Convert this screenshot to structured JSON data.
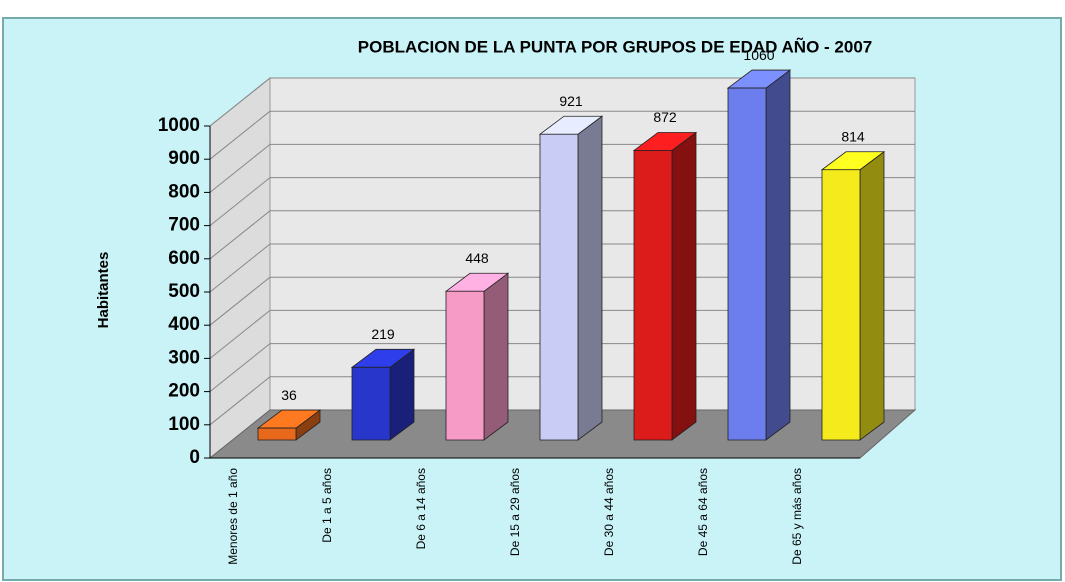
{
  "chart_data": {
    "type": "bar3d",
    "title": "POBLACION DE LA PUNTA POR GRUPOS DE EDAD AÑO - 2007",
    "ylabel": "Habitantes",
    "categories": [
      "Menores de 1 año",
      "De 1 a 5 años",
      "De 6 a 14 años",
      "De 15 a 29 años",
      "De 30 a 44 años",
      "De 45 a 64 años",
      "De 65 y más años"
    ],
    "values": [
      36,
      219,
      448,
      921,
      872,
      1060,
      814
    ],
    "colors": [
      "#e8691c",
      "#2836cc",
      "#f69ac6",
      "#c9cdf5",
      "#dc1b1b",
      "#6c7ded",
      "#f4ea1c"
    ],
    "ylim": [
      0,
      1000
    ],
    "yticks": [
      0,
      100,
      200,
      300,
      400,
      500,
      600,
      700,
      800,
      900,
      1000
    ],
    "grid": true
  }
}
